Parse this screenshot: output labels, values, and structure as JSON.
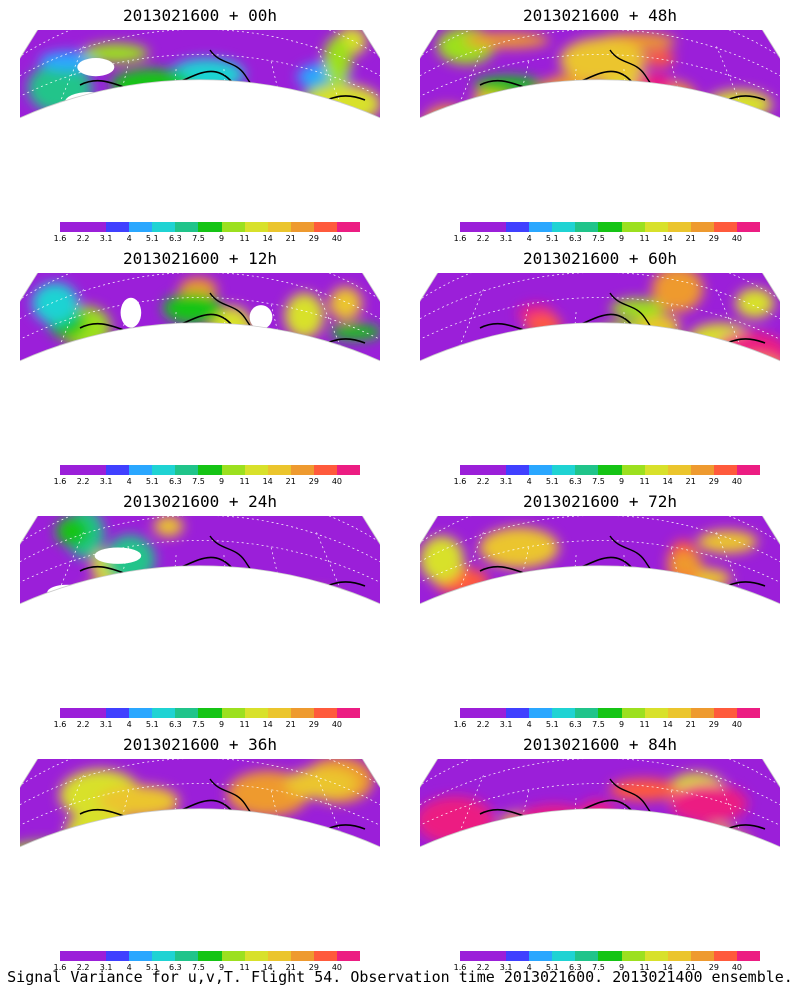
{
  "caption": "Signal Variance for u,v,T. Flight 54. Observation time 2013021600. 2013021400 ensemble.",
  "colorbar": {
    "ticks": [
      "1.6",
      "2.2",
      "3.1",
      "4",
      "5.1",
      "6.3",
      "7.5",
      "9",
      "11",
      "14",
      "21",
      "29",
      "40"
    ],
    "colors": [
      "#9b1fd9",
      "#9b1fd9",
      "#4040ff",
      "#2aa7ff",
      "#1fd3d3",
      "#20c48a",
      "#15c415",
      "#9ce01f",
      "#d8e12b",
      "#ebc52d",
      "#ee9a2f",
      "#ff5a3c",
      "#ec1d82"
    ]
  },
  "panels": [
    {
      "title": "2013021600 + 00h",
      "intensity": 0.15
    },
    {
      "title": "2013021600 + 48h",
      "intensity": 0.62
    },
    {
      "title": "2013021600 + 12h",
      "intensity": 0.35
    },
    {
      "title": "2013021600 + 60h",
      "intensity": 0.7
    },
    {
      "title": "2013021600 + 24h",
      "intensity": 0.45
    },
    {
      "title": "2013021600 + 72h",
      "intensity": 0.8
    },
    {
      "title": "2013021600 + 36h",
      "intensity": 0.52
    },
    {
      "title": "2013021600 + 84h",
      "intensity": 0.9
    }
  ]
}
